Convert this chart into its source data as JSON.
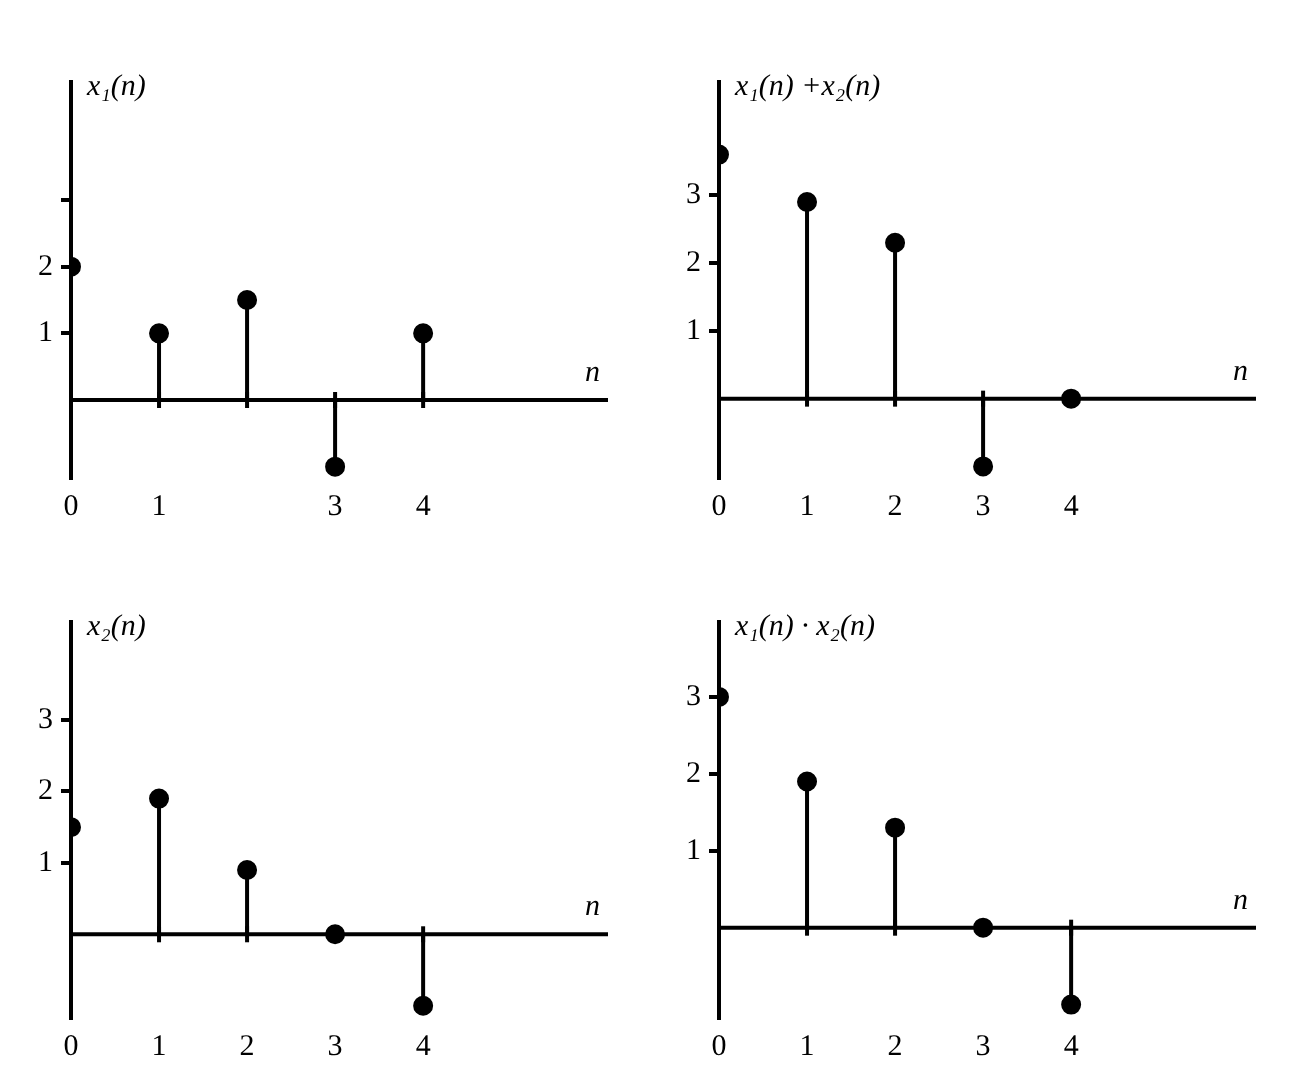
{
  "chart_data": [
    {
      "type": "lollipop",
      "ylabel": "x₁(n)",
      "xlabel": "n",
      "x": [
        0,
        1,
        2,
        3,
        4
      ],
      "series": [
        {
          "color": "#000000",
          "values": [
            2,
            1,
            1.5,
            -1,
            1
          ]
        }
      ],
      "xlim": [
        0,
        6.1
      ],
      "ylim": [
        -1.2,
        4.8
      ],
      "xticks": [
        0,
        1,
        {
          "value": 2,
          "label": null
        },
        3,
        4
      ],
      "yticks": [
        1,
        2,
        {
          "value": 3,
          "label": null
        }
      ],
      "marker": "circle",
      "grid": false,
      "legend": false
    },
    {
      "type": "lollipop",
      "ylabel": "x₁(n) +x₂(n)",
      "xlabel": "n",
      "x": [
        0,
        1,
        2,
        3,
        4
      ],
      "series": [
        {
          "color": "#000000",
          "values": [
            3.6,
            2.9,
            2.3,
            -1,
            0
          ]
        }
      ],
      "xlim": [
        0,
        6.1
      ],
      "ylim": [
        -1.2,
        4.7
      ],
      "xticks": [
        0,
        1,
        2,
        3,
        4
      ],
      "yticks": [
        1,
        2,
        3
      ],
      "marker": "circle",
      "grid": false,
      "legend": false
    },
    {
      "type": "lollipop",
      "ylabel": "x₂(n)",
      "xlabel": "n",
      "x": [
        0,
        1,
        2,
        3,
        4
      ],
      "series": [
        {
          "color": "#000000",
          "values": [
            1.5,
            1.9,
            0.9,
            0,
            -1
          ]
        }
      ],
      "xlim": [
        0,
        6.1
      ],
      "ylim": [
        -1.2,
        4.4
      ],
      "xticks": [
        0,
        1,
        2,
        3,
        4
      ],
      "yticks": [
        1,
        2,
        3
      ],
      "marker": "circle",
      "grid": false,
      "legend": false
    },
    {
      "type": "lollipop",
      "ylabel": "x₁(n) · x₂(n)",
      "xlabel": "n",
      "x": [
        0,
        1,
        2,
        3,
        4
      ],
      "series": [
        {
          "color": "#000000",
          "values": [
            3,
            1.9,
            1.3,
            0,
            -1
          ]
        }
      ],
      "xlim": [
        0,
        6.1
      ],
      "ylim": [
        -1.2,
        4.0
      ],
      "xticks": [
        0,
        1,
        2,
        3,
        4
      ],
      "yticks": [
        1,
        2,
        3
      ],
      "marker": "circle",
      "grid": false,
      "legend": false
    }
  ]
}
